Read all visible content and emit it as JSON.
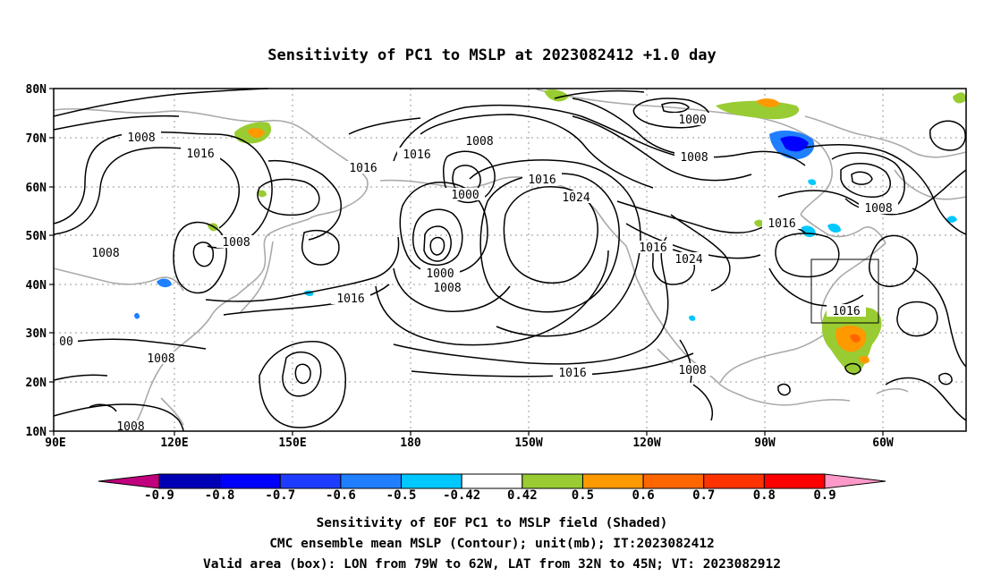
{
  "title": "Sensitivity of PC1 to MSLP at 2023082412 +1.0 day",
  "lat_labels": [
    "80N",
    "70N",
    "60N",
    "50N",
    "40N",
    "30N",
    "20N",
    "10N"
  ],
  "lon_labels": [
    "90E",
    "120E",
    "150E",
    "180",
    "150W",
    "120W",
    "90W",
    "60W"
  ],
  "contour_labels": [
    "1008",
    "1016",
    "1016",
    "1016",
    "1008",
    "1000",
    "1016",
    "1024",
    "1000",
    "1008",
    "1008",
    "1016",
    "1016",
    "1024",
    "1016",
    "1016",
    "1008",
    "1008",
    "1008",
    "1008",
    "1008",
    "00"
  ],
  "colorbar": {
    "labels": [
      "-0.9",
      "-0.8",
      "-0.7",
      "-0.6",
      "-0.5",
      "-0.42",
      "0.42",
      "0.5",
      "0.6",
      "0.7",
      "0.8",
      "0.9"
    ],
    "colors": [
      "#c0007c",
      "#0000b4",
      "#0000ff",
      "#1e3cff",
      "#1f7fff",
      "#00c8ff",
      "#ffffff",
      "#99cc33",
      "#ff9900",
      "#ff6600",
      "#ff3300",
      "#ff0000",
      "#ff99c9"
    ]
  },
  "captions": {
    "line1": "Sensitivity of EOF PC1 to MSLP field (Shaded)",
    "line2": "CMC ensemble mean MSLP (Contour); unit(mb); IT:2023082412",
    "line3": "Valid area (box): LON from 79W to 62W, LAT from 32N to 45N; VT: 2023082912"
  },
  "valid_box": {
    "lon_from": "79W",
    "lon_to": "62W",
    "lat_from": "32N",
    "lat_to": "45N"
  }
}
